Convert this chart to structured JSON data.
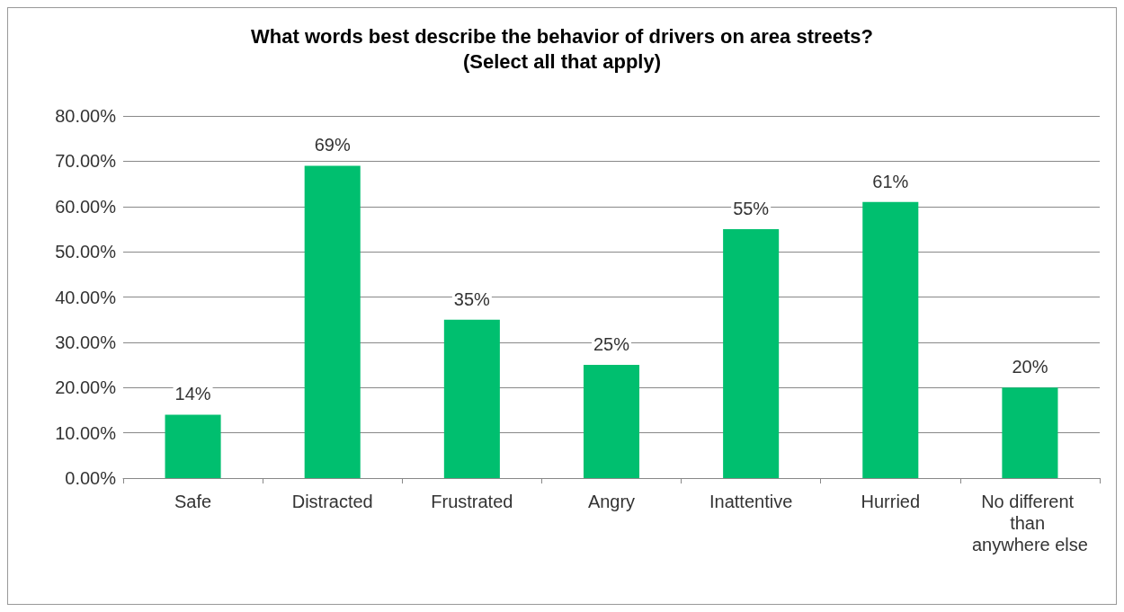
{
  "chart_data": {
    "type": "bar",
    "title": "What words best describe the behavior of drivers on area streets?\n(Select all that apply)",
    "categories": [
      "Safe",
      "Distracted",
      "Frustrated",
      "Angry",
      "Inattentive",
      "Hurried",
      "No different than anywhere else"
    ],
    "values": [
      14,
      69,
      35,
      25,
      55,
      61,
      20
    ],
    "value_labels": [
      "14%",
      "69%",
      "35%",
      "25%",
      "55%",
      "61%",
      "20%"
    ],
    "color": "#00bf6f",
    "ylim": [
      0,
      80
    ],
    "yticks": [
      {
        "value": 0,
        "label": "0.00%"
      },
      {
        "value": 10,
        "label": "10.00%"
      },
      {
        "value": 20,
        "label": "20.00%"
      },
      {
        "value": 30,
        "label": "30.00%"
      },
      {
        "value": 40,
        "label": "40.00%"
      },
      {
        "value": 50,
        "label": "50.00%"
      },
      {
        "value": 60,
        "label": "60.00%"
      },
      {
        "value": 70,
        "label": "70.00%"
      },
      {
        "value": 80,
        "label": "80.00%"
      }
    ],
    "grid": "y"
  }
}
